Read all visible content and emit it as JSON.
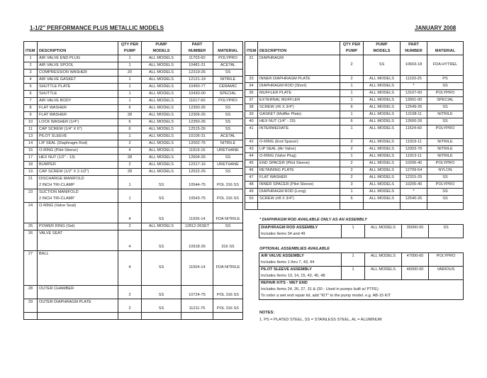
{
  "header": {
    "title": "1-1/2\" PERFORMANCE PLUS METALLIC MODELS",
    "date": "JANUARY 2008"
  },
  "columns": {
    "item": "ITEM",
    "description": "DESCRIPTION",
    "qty": [
      "QTY PER",
      "PUMP"
    ],
    "models": [
      "PUMP",
      "MODELS"
    ],
    "part": [
      "PART",
      "NUMBER"
    ],
    "material": "MATERIAL"
  },
  "left_rows": [
    {
      "item": "1",
      "desc": [
        "AIR VALVE END PLUG"
      ],
      "qty": "1",
      "models": "ALL MODELS",
      "part": "11703-60",
      "material": "POLYPRO"
    },
    {
      "item": "2",
      "desc": [
        "AIR VALVE SPOOL"
      ],
      "qty": "1",
      "models": "ALL MODELS",
      "part": "10481-31",
      "material": "ACETAL"
    },
    {
      "item": "3",
      "desc": [
        "COMPRESSION WASHER"
      ],
      "qty": "20",
      "models": "ALL MODELS",
      "part": "12319-26",
      "material": "SS"
    },
    {
      "item": "4",
      "desc": [
        "AIR VALVE GASKET"
      ],
      "qty": "1",
      "models": "ALL MODELS",
      "part": "12121-19",
      "material": "NITRILE"
    },
    {
      "item": "5",
      "desc": [
        "SHUTTLE PLATE"
      ],
      "qty": "1",
      "models": "ALL MODELS",
      "part": "10450-77",
      "material": "CERAMIC"
    },
    {
      "item": "6",
      "desc": [
        "SHUTTLE"
      ],
      "qty": "1",
      "models": "ALL MODELS",
      "part": "10430-00",
      "material": "SPECIAL"
    },
    {
      "item": "7",
      "desc": [
        "AIR VALVE BODY"
      ],
      "qty": "1",
      "models": "ALL MODELS",
      "part": "11617-60",
      "material": "POLYPRO"
    },
    {
      "item": "8",
      "desc": [
        "FLAT WASHER"
      ],
      "qty": "6",
      "models": "ALL MODELS",
      "part": "12300-26",
      "material": "SS"
    },
    {
      "item": "9",
      "desc": [
        "FLAT WASHER"
      ],
      "qty": "28",
      "models": "ALL MODELS",
      "part": "12306-26",
      "material": "SS"
    },
    {
      "item": "10",
      "desc": [
        "LOCK WASHER (1/4\")"
      ],
      "qty": "6",
      "models": "ALL MODELS",
      "part": "12350-26",
      "material": "SS"
    },
    {
      "item": "11",
      "desc": [
        "CAP SCREW (1/4\" X 6\")"
      ],
      "qty": "6",
      "models": "ALL MODELS",
      "part": "12515-26",
      "material": "SS"
    },
    {
      "item": "13",
      "desc": [
        "PILOT SLEEVE"
      ],
      "qty": "1",
      "models": "ALL MODELS",
      "part": "10106-31",
      "material": "ACETAL"
    },
    {
      "item": "14",
      "desc": [
        "LIP SEAL (Diaphragm Rod)"
      ],
      "qty": "2",
      "models": "ALL MODELS",
      "part": "12002-76",
      "material": "NITRILE"
    },
    {
      "item": "15",
      "desc": [
        "O-RING (Pilot Sleeve)"
      ],
      "qty": "4",
      "models": "ALL MODELS",
      "part": "11919-16",
      "material": "URETHANE"
    },
    {
      "item": "17",
      "desc": [
        "HEX NUT (1/2\" - 13)"
      ],
      "qty": "28",
      "models": "ALL MODELS",
      "part": "12604-26",
      "material": "SS"
    },
    {
      "item": "18",
      "desc": [
        "BUMPER"
      ],
      "qty": "2",
      "models": "ALL MODELS",
      "part": "12317-16",
      "material": "URETHANE"
    },
    {
      "item": "19",
      "desc": [
        "CAP SCREW (1/2\" X 2-1/2\")"
      ],
      "qty": "28",
      "models": "ALL MODELS",
      "part": "12522-26",
      "material": "SS"
    },
    {
      "item": "21",
      "desc": [
        "DISCHARGE MANIFOLD",
        "2 INCH TRI-CLAMP"
      ],
      "qty": "1",
      "models": "SS",
      "part": "10544-75",
      "material": "POL 316 SS"
    },
    {
      "item": "23",
      "desc": [
        "SUCTION MANIFOLD",
        " 2 INCH TRI-CLAMP"
      ],
      "qty": "1",
      "models": "SS",
      "part": "10543-75",
      "material": "POL 316 SS"
    },
    {
      "item": "24",
      "desc": [
        "O-RING (Valve Seat)"
      ],
      "lines": 3,
      "qty": "4",
      "models": "SS",
      "part": "11926-14",
      "material": "FDA NITRILE"
    },
    {
      "item": "25",
      "desc": [
        "POWER RING (Set)"
      ],
      "qty": "2",
      "models": "ALL MODELS",
      "part": "12812-26SET",
      "material": "SS"
    },
    {
      "item": "26",
      "desc": [
        "VALVE SEAT"
      ],
      "lines": 3,
      "qty": "4",
      "models": "SS",
      "part": "10918-26",
      "material": "316 SS"
    },
    {
      "item": "27",
      "desc": [
        "BALL"
      ],
      "lines": 5,
      "qty": "4",
      "models": "SS",
      "part": "11004-14",
      "material": "FDA NITRILE",
      "pad": 2
    },
    {
      "item": "28",
      "desc": [
        "OUTER CHAMBER"
      ],
      "lines": 2,
      "qty": "2",
      "models": "SS",
      "part": "10724-75",
      "material": "POL 316 SS"
    },
    {
      "item": "29",
      "desc": [
        "OUTER DIAPHRAGM PLATE"
      ],
      "lines": 2,
      "qty": "2",
      "models": "SS",
      "part": "11211-75",
      "material": "POL 316 SS"
    },
    {
      "item": "",
      "desc": [
        ""
      ],
      "qty": "",
      "models": "",
      "part": "",
      "material": ""
    }
  ],
  "right_rows": [
    {
      "item": "31",
      "desc": [
        "DIAPHRAGM"
      ],
      "lines": 3,
      "qty": "2",
      "models": "SS",
      "part": "10603-18",
      "material": "FDA HYTREL",
      "pad": 1
    },
    {
      "item": "33",
      "desc": [
        "INNER DIAPHRAGM PLATE"
      ],
      "qty": "2",
      "models": "ALL MODELS",
      "part": "11103-25",
      "material": "PS"
    },
    {
      "item": "34",
      "desc": [
        "DIAPHRAGM ROD (Short)"
      ],
      "qty": "1",
      "models": "ALL MODELS",
      "part": "*",
      "material": "SS"
    },
    {
      "item": "36",
      "desc": [
        "MUFFLER PLATE"
      ],
      "qty": "1",
      "models": "ALL MODELS",
      "part": "13107-60",
      "material": "POLYPRO"
    },
    {
      "item": "37",
      "desc": [
        "EXTERNAL MUFFLER"
      ],
      "qty": "1",
      "models": "ALL MODELS",
      "part": "13001-00",
      "material": "SPECIAL"
    },
    {
      "item": "38",
      "desc": [
        "SCREW (#6 X 3/4\")"
      ],
      "qty": "6",
      "models": "ALL MODELS",
      "part": "12549-26",
      "material": "SS"
    },
    {
      "item": "39",
      "desc": [
        "GASKET (Muffler Plate)"
      ],
      "qty": "1",
      "models": "ALL MODELS",
      "part": "12108-11",
      "material": "NITRILE"
    },
    {
      "item": "40",
      "desc": [
        "HEX NUT (1/4\" - 20)"
      ],
      "qty": "6",
      "models": "ALL MODELS",
      "part": "12600-26",
      "material": "SS"
    },
    {
      "item": "41",
      "desc": [
        "INTERMEDIATE"
      ],
      "lines": 2,
      "top": true,
      "qty": "1",
      "models": "ALL MODELS",
      "part": "11524-60",
      "material": "POLYPRO"
    },
    {
      "item": "42",
      "desc": [
        "O-RING (End Spacer)"
      ],
      "qty": "2",
      "models": "ALL MODELS",
      "part": "11919-11",
      "material": "NITRILE"
    },
    {
      "item": "43",
      "desc": [
        "LIP SEAL (Air Valve)"
      ],
      "qty": "2",
      "models": "ALL MODELS",
      "part": "12003-76",
      "material": "NITRILE"
    },
    {
      "item": "44",
      "desc": [
        "O-RING (Valve Plug)"
      ],
      "qty": "1",
      "models": "ALL MODELS",
      "part": "11913-11",
      "material": "NITRILE"
    },
    {
      "item": "45",
      "desc": [
        "END SPACER (Pilot Sleeve)"
      ],
      "qty": "2",
      "models": "ALL MODELS",
      "part": "10206-40",
      "material": "POLYPRO"
    },
    {
      "item": "46",
      "desc": [
        "RETAINING PLATE"
      ],
      "qty": "2",
      "models": "ALL MODELS",
      "part": "12709-54",
      "material": "NYLON"
    },
    {
      "item": "47",
      "desc": [
        "FLAT WASHER"
      ],
      "qty": "2",
      "models": "ALL MODELS",
      "part": "12315-25",
      "material": "SS"
    },
    {
      "item": "48",
      "desc": [
        "INNER SPACER (Pilot Sleeve)"
      ],
      "qty": "3",
      "models": "ALL MODELS",
      "part": "10205-40",
      "material": "POLYPRO"
    },
    {
      "item": "49",
      "desc": [
        "DIAPHRAGM ROD (Long)"
      ],
      "qty": "1",
      "models": "ALL MODELS",
      "part": "*",
      "material": "SS"
    },
    {
      "item": "50",
      "desc": [
        "SCREW (#8 X 3/4\")"
      ],
      "qty": "6",
      "models": "ALL MODELS",
      "part": "12540-26",
      "material": "SS"
    },
    {
      "item": "",
      "desc": [
        ""
      ],
      "qty": "",
      "models": "",
      "part": "",
      "material": ""
    }
  ],
  "rod_note": "* DIAPHRAGM ROD AVAILABLE ONLY AS AN ASSEMBLY",
  "rod_assembly": {
    "name": "DIAPHRAGM ROD ASSEMBLY",
    "includes": "Includes Items 34 and 49",
    "qty": "1",
    "models": "ALL MODELS",
    "part": "35000-00",
    "material": "SS"
  },
  "optional_heading": "OPTIONAL ASSEMBLIES AVAILABLE",
  "optional": [
    {
      "name": "AIR VALVE ASSEMBLY",
      "includes": "Includes Items 1 thru 7, 43, 44",
      "qty": "1",
      "models": "ALL MODELS",
      "part": "47000-60",
      "material": "POLYPRO"
    },
    {
      "name": "PILOT SLEEVE ASSEMBLY",
      "includes": "Includes Items 13, 14, 15, 42, 45, 48",
      "qty": "1",
      "models": "ALL MODELS",
      "part": "46000-00",
      "material": "VARIOUS"
    }
  ],
  "repair": {
    "title": "REPAIR KITS - WET END",
    "line1": "Includes Items 24, 26, 27, 31 & (30 - Used in pumps built w/ PTFE)",
    "line2": "To order a wet end repair kit, add \"KIT\" to the pump model. e.g. AB-15 KIT"
  },
  "notes": {
    "heading": "NOTES:",
    "items": [
      "1.  PS = PLATED STEEL, SS = STAINLESS STEEL, AL = ALUMINUM"
    ]
  }
}
